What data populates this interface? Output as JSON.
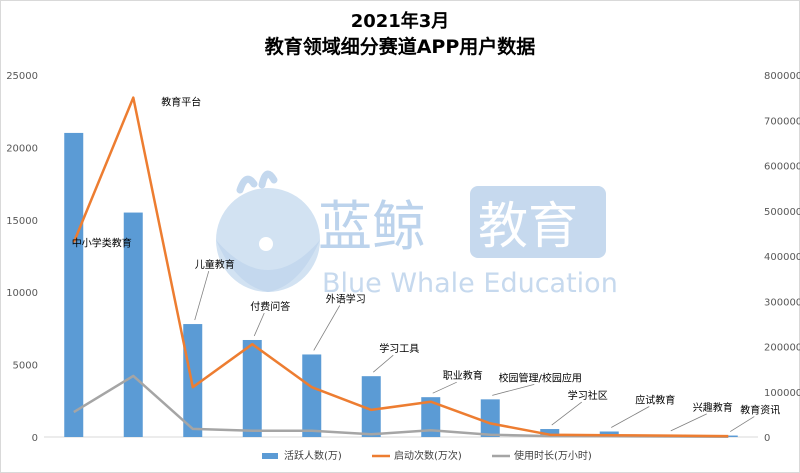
{
  "watermark": {
    "chinese_a": "蓝鲸",
    "chinese_b": "教育",
    "english": "Blue Whale Education"
  },
  "chart_data": {
    "type": "bar",
    "title_line1": "2021年3月",
    "title_line2": "教育领域细分赛道APP用户数据",
    "categories": [
      "中小学类教育",
      "教育平台",
      "儿童教育",
      "付费问答",
      "外语学习",
      "学习工具",
      "职业教育",
      "校园管理/校园应用",
      "学习社区",
      "应试教育",
      "兴趣教育",
      "教育资讯"
    ],
    "series": [
      {
        "name": "活跃人数(万)",
        "type": "bar",
        "axis": "left",
        "color": "#5b9bd5",
        "values": [
          21000,
          15500,
          7800,
          6700,
          5700,
          4200,
          2750,
          2600,
          550,
          380,
          150,
          100
        ]
      },
      {
        "name": "启动次数(万次)",
        "type": "line",
        "axis": "right",
        "color": "#ed7d31",
        "values": [
          430000,
          750000,
          110000,
          205000,
          110000,
          60000,
          78000,
          30000,
          5000,
          4000,
          3000,
          2000
        ]
      },
      {
        "name": "使用时长(万小时)",
        "type": "line",
        "axis": "right",
        "color": "#a5a5a5",
        "values": [
          55000,
          135000,
          18000,
          14000,
          14000,
          6000,
          15000,
          5000,
          2000,
          1500,
          1000,
          500
        ]
      }
    ],
    "y_left": {
      "min": 0,
      "max": 25000,
      "ticks": [
        0,
        5000,
        10000,
        15000,
        20000,
        25000
      ]
    },
    "y_right": {
      "min": 0,
      "max": 800000,
      "ticks": [
        0,
        100000,
        200000,
        300000,
        400000,
        500000,
        600000,
        700000,
        800000
      ]
    },
    "legend_position": "bottom",
    "grid": false
  }
}
